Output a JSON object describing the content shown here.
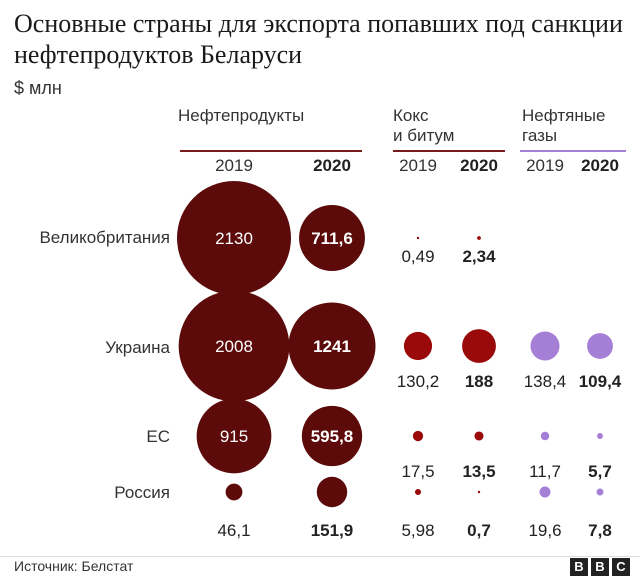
{
  "title": "Основные страны для экспорта попавших под санкции нефтепродуктов Беларуси",
  "unit": "$ млн",
  "source": "Источник: Белстат",
  "logo": [
    "B",
    "B",
    "C"
  ],
  "colors": {
    "oil": "#5c0a0a",
    "coke": "#9b0a0a",
    "gas": "#a57fd6",
    "oil_line": "#7a1a1a",
    "gas_line": "#a57fd6"
  },
  "chart_data": {
    "type": "bubble",
    "years": [
      "2019",
      "2020"
    ],
    "groups": [
      {
        "label": "Нефтепродукты",
        "label_lines": [
          "Нефтепродукты"
        ],
        "color": "#5c0a0a"
      },
      {
        "label": "Кокс и битум",
        "label_lines": [
          "Кокс",
          "и битум"
        ],
        "color": "#9b0a0a"
      },
      {
        "label": "Нефтяные газы",
        "label_lines": [
          "Нефтяные",
          "газы"
        ],
        "color": "#a57fd6"
      }
    ],
    "countries": [
      "Великобритания",
      "Украина",
      "ЕС",
      "Россия"
    ],
    "values": [
      {
        "country": "Великобритания",
        "data": [
          [
            2130,
            711.6
          ],
          [
            0.49,
            2.34
          ],
          [
            null,
            null
          ]
        ]
      },
      {
        "country": "Украина",
        "data": [
          [
            2008,
            1241
          ],
          [
            130.2,
            188
          ],
          [
            138.4,
            109.4
          ]
        ]
      },
      {
        "country": "ЕС",
        "data": [
          [
            915,
            595.8
          ],
          [
            17.5,
            13.5
          ],
          [
            11.7,
            5.7
          ]
        ]
      },
      {
        "country": "Россия",
        "data": [
          [
            46.1,
            151.9
          ],
          [
            5.98,
            0.7
          ],
          [
            19.6,
            7.8
          ]
        ]
      }
    ],
    "labels": [
      {
        "country": "Великобритания",
        "data": [
          [
            "2130",
            "711,6"
          ],
          [
            "0,49",
            "2,34"
          ],
          [
            "",
            ""
          ]
        ]
      },
      {
        "country": "Украина",
        "data": [
          [
            "2008",
            "1241"
          ],
          [
            "130,2",
            "188"
          ],
          [
            "138,4",
            "109,4"
          ]
        ]
      },
      {
        "country": "ЕС",
        "data": [
          [
            "915",
            "595,8"
          ],
          [
            "17,5",
            "13,5"
          ],
          [
            "11,7",
            "5,7"
          ]
        ]
      },
      {
        "country": "Россия",
        "data": [
          [
            "46,1",
            "151,9"
          ],
          [
            "5,98",
            "0,7"
          ],
          [
            "19,6",
            "7,8"
          ]
        ]
      }
    ]
  }
}
